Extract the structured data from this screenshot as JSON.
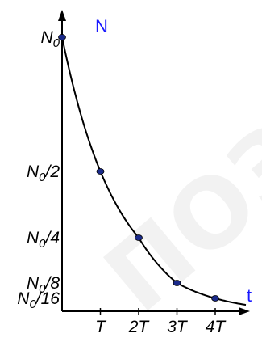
{
  "watermark": "ПОЗИТ",
  "chart_data": {
    "type": "line",
    "title": "",
    "xlabel": "t",
    "ylabel": "N",
    "x_unit": "T",
    "y_unit": "N0",
    "x_ticks": [
      {
        "value": 1,
        "label": "T"
      },
      {
        "value": 2,
        "label": "2T"
      },
      {
        "value": 3,
        "label": "3T"
      },
      {
        "value": 4,
        "label": "4T"
      }
    ],
    "y_ticks": [
      {
        "value": 1,
        "label": "N0"
      },
      {
        "value": 0.5,
        "label": "N0/2"
      },
      {
        "value": 0.25,
        "label": "N0/4"
      },
      {
        "value": 0.125,
        "label": "N0/8"
      },
      {
        "value": 0.0625,
        "label": "N0/16"
      }
    ],
    "series": [
      {
        "points": [
          {
            "x": 0,
            "y": 1
          },
          {
            "x": 1,
            "y": 0.5
          },
          {
            "x": 2,
            "y": 0.25
          },
          {
            "x": 3,
            "y": 0.125
          },
          {
            "x": 4,
            "y": 0.0625
          }
        ],
        "curve_x_end": 4.8
      }
    ],
    "colors": {
      "axis": "#000000",
      "curve": "#000000",
      "point": "#1a2a8a",
      "axis_label": "#1a1aff",
      "watermark": "#f2f2f2"
    }
  }
}
